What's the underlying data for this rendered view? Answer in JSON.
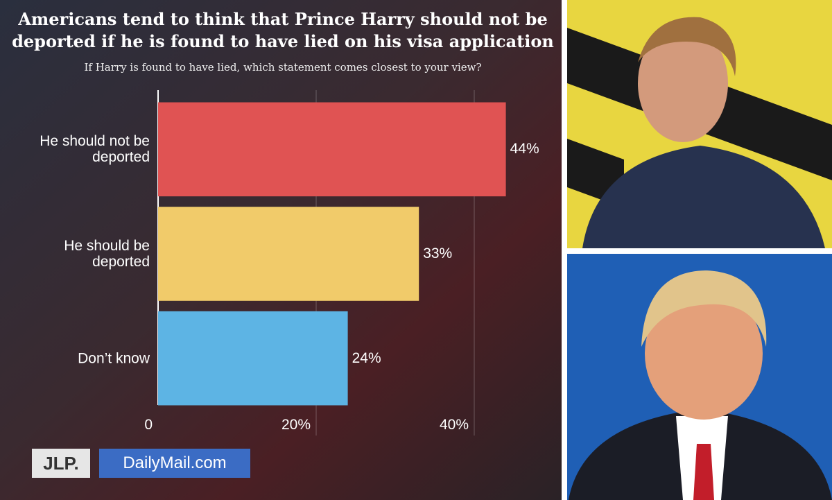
{
  "chart_data": {
    "type": "hbar",
    "title": "Americans tend to think that Prince Harry should not be deported if he is found to have lied on his visa application",
    "subtitle": "If Harry is found to have lied, which statement comes closest to your view?",
    "categories": [
      "He should not be deported",
      "He should be deported",
      "Don’t know"
    ],
    "values": [
      44,
      33,
      24
    ],
    "value_labels": [
      "44%",
      "33%",
      "24%"
    ],
    "colors": [
      "#e05353",
      "#f1cb6a",
      "#5db4e4"
    ],
    "xlim": [
      0,
      50
    ],
    "xticks": [
      0,
      {
        "value": 20,
        "label": "20%"
      },
      {
        "value": 40,
        "label": "40%"
      }
    ],
    "grid": true
  },
  "logos": [
    "JLP.",
    "DailyMail.com"
  ]
}
